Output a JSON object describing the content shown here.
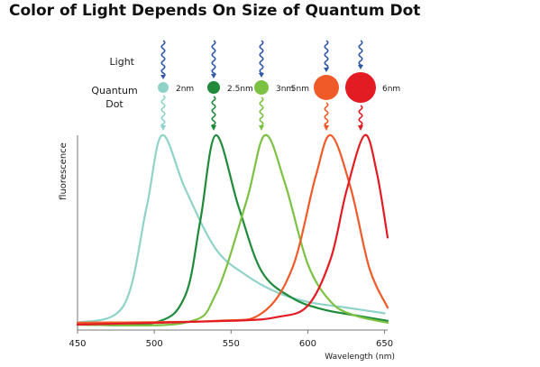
{
  "title": "Color of Light Depends On Size of Quantum Dot",
  "labels": {
    "light": "Light",
    "quantum_dot_line1": "Quantum",
    "quantum_dot_line2": "Dot"
  },
  "dots": [
    {
      "size": "2nm",
      "color": "#8fd3c8"
    },
    {
      "size": "2.5nm",
      "color": "#1f8a3a"
    },
    {
      "size": "3nm",
      "color": "#7cc242"
    },
    {
      "size": "5nm",
      "color": "#f05a28"
    },
    {
      "size": "6nm",
      "color": "#e31b23"
    }
  ],
  "chart_data": {
    "type": "line",
    "title": "Color of Light Depends On Size of Quantum Dot",
    "xlabel": "Wavelength (nm)",
    "ylabel": "fluorescence",
    "xlim": [
      450,
      652
    ],
    "ylim": [
      0,
      1
    ],
    "xticks": [
      450,
      500,
      550,
      600,
      650
    ],
    "grid": false,
    "series": [
      {
        "name": "2nm",
        "color": "#8fd3c8",
        "x": [
          450,
          480,
          495,
          505,
          520,
          540,
          560,
          580,
          600,
          625,
          650
        ],
        "y": [
          0.01,
          0.1,
          0.62,
          1.0,
          0.72,
          0.4,
          0.26,
          0.17,
          0.12,
          0.09,
          0.06
        ]
      },
      {
        "name": "2.5nm",
        "color": "#1f8a3a",
        "x": [
          450,
          500,
          520,
          530,
          540,
          555,
          570,
          590,
          610,
          630,
          652
        ],
        "y": [
          0.0,
          0.01,
          0.15,
          0.55,
          1.0,
          0.62,
          0.28,
          0.14,
          0.08,
          0.05,
          0.02
        ]
      },
      {
        "name": "3nm",
        "color": "#7cc242",
        "x": [
          450,
          520,
          540,
          560,
          572,
          585,
          600,
          615,
          630,
          652
        ],
        "y": [
          0.0,
          0.01,
          0.16,
          0.65,
          1.0,
          0.75,
          0.32,
          0.12,
          0.05,
          0.01
        ]
      },
      {
        "name": "5nm",
        "color": "#f05a28",
        "x": [
          450,
          540,
          570,
          590,
          605,
          615,
          628,
          640,
          652
        ],
        "y": [
          0.01,
          0.02,
          0.06,
          0.3,
          0.78,
          1.0,
          0.72,
          0.3,
          0.09
        ]
      },
      {
        "name": "6nm",
        "color": "#e31b23",
        "x": [
          450,
          550,
          580,
          600,
          615,
          625,
          637,
          645,
          652
        ],
        "y": [
          0.0,
          0.02,
          0.04,
          0.1,
          0.35,
          0.7,
          1.0,
          0.8,
          0.46
        ]
      }
    ]
  }
}
